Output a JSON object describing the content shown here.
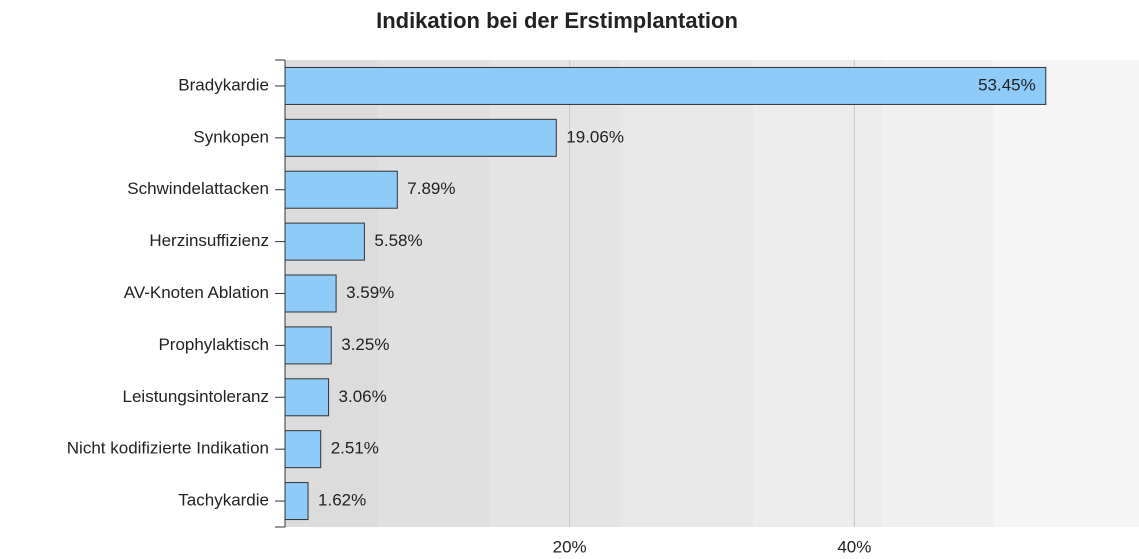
{
  "chart_data": {
    "type": "bar",
    "orientation": "horizontal",
    "title": "Indikation bei der Erstimplantation",
    "categories": [
      "Bradykardie",
      "Synkopen",
      "Schwindelattacken",
      "Herzinsuffizienz",
      "AV-Knoten Ablation",
      "Prophylaktisch",
      "Leistungsintoleranz",
      "Nicht kodifizierte Indikation",
      "Tachykardie"
    ],
    "values": [
      53.45,
      19.06,
      7.89,
      5.58,
      3.59,
      3.25,
      3.06,
      2.51,
      1.62
    ],
    "value_labels": [
      "53.45%",
      "19.06%",
      "7.89%",
      "5.58%",
      "3.59%",
      "3.25%",
      "3.06%",
      "2.51%",
      "1.62%"
    ],
    "color": "#8ecbf9",
    "xlim": [
      0,
      60
    ],
    "xticks": [
      {
        "value": 20,
        "label": "20%"
      },
      {
        "value": 40,
        "label": "40%"
      }
    ],
    "grid": true
  }
}
